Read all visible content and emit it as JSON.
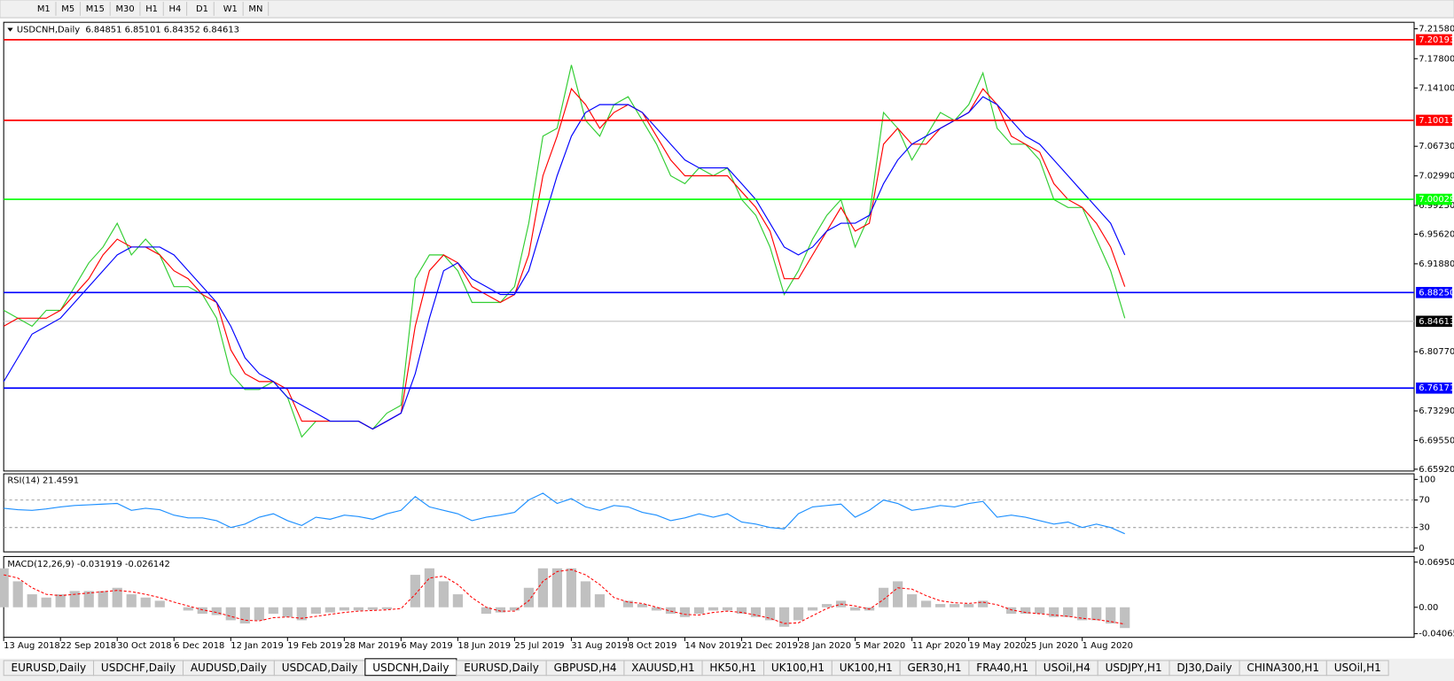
{
  "toolbar": {
    "timeframes": [
      "M1",
      "M5",
      "M15",
      "M30",
      "H1",
      "H4",
      "D1",
      "W1",
      "MN"
    ]
  },
  "chart_data": [
    {
      "type": "line",
      "title": "USDCNH,Daily",
      "ohlc": [
        6.84851,
        6.85101,
        6.84352,
        6.84613
      ],
      "categories": [
        "13 Aug 2018",
        null,
        null,
        null,
        "22 Sep 2018",
        null,
        null,
        null,
        "30 Oct 2018",
        null,
        null,
        null,
        "6 Dec 2018",
        null,
        null,
        null,
        "12 Jan 2019",
        null,
        null,
        null,
        "19 Feb 2019",
        null,
        null,
        null,
        "28 Mar 2019",
        null,
        null,
        null,
        "6 May 2019",
        null,
        null,
        null,
        "18 Jun 2019",
        null,
        null,
        null,
        "25 Jul 2019",
        null,
        null,
        null,
        "31 Aug 2019",
        null,
        null,
        null,
        "8 Oct 2019",
        null,
        null,
        null,
        "14 Nov 2019",
        null,
        null,
        null,
        "21 Dec 2019",
        null,
        null,
        null,
        "28 Jan 2020",
        null,
        null,
        null,
        "5 Mar 2020",
        null,
        null,
        null,
        "11 Apr 2020",
        null,
        null,
        null,
        "19 May 2020",
        null,
        null,
        null,
        "25 Jun 2020",
        null,
        null,
        null,
        "1 Aug 2020",
        null,
        null,
        null
      ],
      "series": [
        {
          "color": "#32cd32",
          "values": [
            6.86,
            6.85,
            6.84,
            6.86,
            6.86,
            6.89,
            6.92,
            6.94,
            6.97,
            6.93,
            6.95,
            6.93,
            6.89,
            6.89,
            6.88,
            6.85,
            6.78,
            6.76,
            6.76,
            6.77,
            6.75,
            6.7,
            6.72,
            6.72,
            6.72,
            6.72,
            6.71,
            6.73,
            6.74,
            6.9,
            6.93,
            6.93,
            6.91,
            6.87,
            6.87,
            6.87,
            6.89,
            6.97,
            7.08,
            7.09,
            7.17,
            7.1,
            7.08,
            7.12,
            7.13,
            7.1,
            7.07,
            7.03,
            7.02,
            7.04,
            7.03,
            7.04,
            7.0,
            6.98,
            6.94,
            6.88,
            6.91,
            6.95,
            6.98,
            7.0,
            6.94,
            6.98,
            7.11,
            7.09,
            7.05,
            7.08,
            7.11,
            7.1,
            7.12,
            7.16,
            7.09,
            7.07,
            7.07,
            7.05,
            7.0,
            6.99,
            6.99,
            6.95,
            6.91,
            6.85
          ]
        },
        {
          "color": "#ff0000",
          "values": [
            6.84,
            6.85,
            6.85,
            6.85,
            6.86,
            6.88,
            6.9,
            6.93,
            6.95,
            6.94,
            6.94,
            6.93,
            6.91,
            6.9,
            6.88,
            6.87,
            6.81,
            6.78,
            6.77,
            6.77,
            6.76,
            6.72,
            6.72,
            6.72,
            6.72,
            6.72,
            6.71,
            6.72,
            6.73,
            6.84,
            6.91,
            6.93,
            6.92,
            6.89,
            6.88,
            6.87,
            6.88,
            6.93,
            7.03,
            7.08,
            7.14,
            7.12,
            7.09,
            7.11,
            7.12,
            7.11,
            7.08,
            7.05,
            7.03,
            7.03,
            7.03,
            7.03,
            7.01,
            6.99,
            6.96,
            6.9,
            6.9,
            6.93,
            6.96,
            6.99,
            6.96,
            6.97,
            7.07,
            7.09,
            7.07,
            7.07,
            7.09,
            7.1,
            7.11,
            7.14,
            7.12,
            7.08,
            7.07,
            7.06,
            7.02,
            7.0,
            6.99,
            6.97,
            6.94,
            6.89
          ]
        },
        {
          "color": "#0000ff",
          "values": [
            6.77,
            6.8,
            6.83,
            6.84,
            6.85,
            6.87,
            6.89,
            6.91,
            6.93,
            6.94,
            6.94,
            6.94,
            6.93,
            6.91,
            6.89,
            6.87,
            6.84,
            6.8,
            6.78,
            6.77,
            6.75,
            6.74,
            6.73,
            6.72,
            6.72,
            6.72,
            6.71,
            6.72,
            6.73,
            6.78,
            6.85,
            6.91,
            6.92,
            6.9,
            6.89,
            6.88,
            6.88,
            6.91,
            6.97,
            7.03,
            7.08,
            7.11,
            7.12,
            7.12,
            7.12,
            7.11,
            7.09,
            7.07,
            7.05,
            7.04,
            7.04,
            7.04,
            7.02,
            7.0,
            6.97,
            6.94,
            6.93,
            6.94,
            6.96,
            6.97,
            6.97,
            6.98,
            7.02,
            7.05,
            7.07,
            7.08,
            7.09,
            7.1,
            7.11,
            7.13,
            7.12,
            7.1,
            7.08,
            7.07,
            7.05,
            7.03,
            7.01,
            6.99,
            6.97,
            6.93
          ]
        }
      ],
      "ylim": [
        6.6569,
        7.224
      ],
      "yticks": [
        {
          "value": 7.2158,
          "label": "7.21580"
        },
        {
          "value": 7.178,
          "label": "7.17800"
        },
        {
          "value": 7.141,
          "label": "7.14100"
        },
        {
          "value": 7.0673,
          "label": "7.06730"
        },
        {
          "value": 7.0299,
          "label": "7.02990"
        },
        {
          "value": 6.9925,
          "label": "6.99250"
        },
        {
          "value": 6.9562,
          "label": "6.95620"
        },
        {
          "value": 6.9188,
          "label": "6.91880"
        },
        {
          "value": 6.8077,
          "label": "6.80770"
        },
        {
          "value": 6.7329,
          "label": "6.73290"
        },
        {
          "value": 6.6955,
          "label": "6.69550"
        },
        {
          "value": 6.6592,
          "label": "6.65920"
        }
      ],
      "levels": [
        {
          "value": 7.20193,
          "color": "#ff0000"
        },
        {
          "value": 7.10011,
          "color": "#ff0000"
        },
        {
          "value": 7.00029,
          "color": "#00ff00"
        },
        {
          "value": {
            "value": 6.8825,
            "label": "6.88250"
          },
          "color": "#0000ff"
        },
        {
          "value": 6.76171,
          "color": "#0000ff"
        }
      ],
      "last_price": 6.84613
    },
    {
      "type": "line",
      "title": "RSI(14)",
      "indicator_values": [
        21.4591
      ],
      "color": "#1e90ff",
      "values": [
        58,
        56,
        55,
        57,
        60,
        62,
        63,
        64,
        65,
        55,
        58,
        56,
        48,
        44,
        44,
        40,
        30,
        35,
        45,
        50,
        40,
        33,
        45,
        42,
        48,
        46,
        42,
        50,
        55,
        75,
        60,
        55,
        50,
        40,
        45,
        48,
        52,
        70,
        80,
        65,
        72,
        60,
        55,
        62,
        60,
        52,
        48,
        40,
        44,
        50,
        45,
        50,
        38,
        35,
        30,
        28,
        50,
        60,
        62,
        64,
        45,
        55,
        70,
        65,
        55,
        58,
        62,
        60,
        65,
        68,
        45,
        48,
        45,
        40,
        35,
        38,
        30,
        35,
        30,
        21
      ],
      "ylim": [
        -5.4,
        108.1
      ],
      "yticks": [
        100,
        70,
        30,
        0
      ],
      "dashed_levels": [
        70,
        30
      ]
    },
    {
      "type": "macd",
      "title": "MACD(12,26,9)",
      "indicator_values": [
        -0.031919,
        -0.026142
      ],
      "series": [
        {
          "color": "#c0c0c0",
          "values": [
            0.06,
            0.04,
            0.02,
            0.015,
            0.02,
            0.025,
            0.025,
            0.025,
            0.03,
            0.02,
            0.015,
            0.01,
            0,
            -0.005,
            -0.01,
            -0.012,
            -0.02,
            -0.025,
            -0.02,
            -0.01,
            -0.015,
            -0.02,
            -0.01,
            -0.008,
            -0.005,
            -0.005,
            -0.004,
            -0.003,
            0,
            0.05,
            0.06,
            0.04,
            0.02,
            0,
            -0.01,
            -0.008,
            -0.005,
            0.03,
            0.06,
            0.06,
            0.06,
            0.04,
            0.02,
            0,
            0.01,
            0.005,
            -0.005,
            -0.01,
            -0.015,
            -0.01,
            -0.005,
            -0.005,
            -0.01,
            -0.015,
            -0.02,
            -0.03,
            -0.02,
            -0.005,
            0.005,
            0.01,
            -0.005,
            -0.005,
            0.03,
            0.04,
            0.02,
            0.01,
            0.005,
            0.005,
            0.005,
            0.01,
            0,
            -0.01,
            -0.01,
            -0.01,
            -0.015,
            -0.015,
            -0.02,
            -0.02,
            -0.025,
            -0.032
          ]
        },
        {
          "color": "#ff0000",
          "values": [
            0.05,
            0.045,
            0.03,
            0.02,
            0.018,
            0.02,
            0.022,
            0.024,
            0.026,
            0.024,
            0.02,
            0.015,
            0.008,
            0.002,
            -0.004,
            -0.008,
            -0.014,
            -0.02,
            -0.021,
            -0.016,
            -0.015,
            -0.017,
            -0.014,
            -0.011,
            -0.008,
            -0.006,
            -0.005,
            -0.004,
            -0.002,
            0.02,
            0.045,
            0.048,
            0.035,
            0.015,
            0,
            -0.006,
            -0.006,
            0.01,
            0.04,
            0.055,
            0.058,
            0.05,
            0.035,
            0.015,
            0.008,
            0.006,
            0,
            -0.006,
            -0.011,
            -0.012,
            -0.008,
            -0.006,
            -0.008,
            -0.012,
            -0.017,
            -0.025,
            -0.024,
            -0.013,
            -0.002,
            0.005,
            0.002,
            -0.003,
            0.012,
            0.03,
            0.028,
            0.018,
            0.01,
            0.007,
            0.006,
            0.008,
            0.004,
            -0.004,
            -0.008,
            -0.01,
            -0.012,
            -0.014,
            -0.017,
            -0.019,
            -0.022,
            -0.026
          ]
        }
      ],
      "ylim": [
        -0.0463,
        0.0782
      ],
      "yticks": [
        0.069506,
        {
          "value": 0,
          "label": "0.00"
        },
        -0.040655
      ]
    }
  ],
  "tabs": {
    "items": [
      "EURUSD,Daily",
      "USDCHF,Daily",
      "AUDUSD,Daily",
      "USDCAD,Daily",
      "USDCNH,Daily",
      "EURUSD,Daily",
      "GBPUSD,H4",
      "XAUUSD,H1",
      "HK50,H1",
      "UK100,H1",
      "UK100,H1",
      "GER30,H1",
      "FRA40,H1",
      "USOil,H4",
      "USDJPY,H1",
      "DJ30,Daily",
      "CHINA300,H1",
      "USOil,H1"
    ],
    "active": 4
  }
}
